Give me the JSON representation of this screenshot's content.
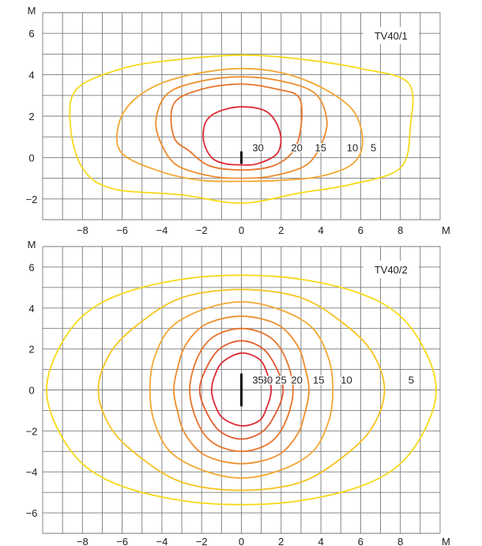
{
  "chart_data": [
    {
      "type": "contour",
      "label": "TV40/1",
      "axis_unit_x": "M",
      "axis_unit_y": "M",
      "xlim": [
        -10,
        10
      ],
      "ylim": [
        -3,
        7
      ],
      "x_ticks": [
        -8,
        -6,
        -4,
        -2,
        0,
        2,
        4,
        6,
        8
      ],
      "y_ticks": [
        6,
        4,
        2,
        0,
        -2
      ],
      "x_tick_labels": [
        "−8",
        "−6",
        "−4",
        "−2",
        "0",
        "2",
        "4",
        "6",
        "8"
      ],
      "y_tick_labels": [
        "6",
        "4",
        "2",
        "0",
        "−2"
      ],
      "grid": true,
      "luminaire": {
        "x": 0,
        "y_from": -0.3,
        "y_to": 0.3
      },
      "contours": [
        {
          "level": 5,
          "label": "5",
          "label_pos": [
            6.5,
            0.5
          ],
          "color": "#f6d91a",
          "points": [
            [
              0,
              4.95
            ],
            [
              3,
              4.75
            ],
            [
              6,
              4.3
            ],
            [
              8.4,
              3.6
            ],
            [
              8.5,
              1.5
            ],
            [
              8.0,
              -0.5
            ],
            [
              5.5,
              -1.3
            ],
            [
              3.0,
              -1.7
            ],
            [
              0,
              -2.2
            ],
            [
              -3.0,
              -1.8
            ],
            [
              -6.5,
              -1.5
            ],
            [
              -8.0,
              -0.5
            ],
            [
              -8.6,
              1.5
            ],
            [
              -8.3,
              3.3
            ],
            [
              -6.0,
              4.3
            ],
            [
              -3.5,
              4.7
            ]
          ]
        },
        {
          "level": 10,
          "label": "10",
          "label_pos": [
            5.3,
            0.5
          ],
          "color": "#f3a733",
          "points": [
            [
              0,
              4.3
            ],
            [
              2.0,
              4.1
            ],
            [
              4.0,
              3.4
            ],
            [
              5.6,
              2.3
            ],
            [
              6.1,
              0.8
            ],
            [
              5.6,
              -0.3
            ],
            [
              4.0,
              -0.9
            ],
            [
              2.0,
              -1.1
            ],
            [
              0,
              -1.15
            ],
            [
              -2.0,
              -1.1
            ],
            [
              -4.0,
              -0.7
            ],
            [
              -6.0,
              0.2
            ],
            [
              -6.2,
              1.5
            ],
            [
              -5.5,
              2.7
            ],
            [
              -4.0,
              3.6
            ],
            [
              -2.0,
              4.1
            ]
          ]
        },
        {
          "level": 15,
          "label": "15",
          "label_pos": [
            3.7,
            0.5
          ],
          "color": "#ef8d2e",
          "points": [
            [
              0,
              3.9
            ],
            [
              2.0,
              3.7
            ],
            [
              3.7,
              3.1
            ],
            [
              4.3,
              1.8
            ],
            [
              4.0,
              0.6
            ],
            [
              3.2,
              -0.4
            ],
            [
              1.5,
              -0.9
            ],
            [
              0,
              -1.0
            ],
            [
              -1.5,
              -0.9
            ],
            [
              -3.2,
              -0.4
            ],
            [
              -4.0,
              0.6
            ],
            [
              -4.3,
              1.8
            ],
            [
              -3.7,
              3.1
            ],
            [
              -2.0,
              3.7
            ]
          ]
        },
        {
          "level": 20,
          "label": "20",
          "label_pos": [
            2.5,
            0.5
          ],
          "color": "#e8742a",
          "points": [
            [
              0,
              3.55
            ],
            [
              1.8,
              3.3
            ],
            [
              2.9,
              2.9
            ],
            [
              3.0,
              1.5
            ],
            [
              2.6,
              0.3
            ],
            [
              1.6,
              -0.4
            ],
            [
              0,
              -0.6
            ],
            [
              -1.6,
              -0.4
            ],
            [
              -2.6,
              0.3
            ],
            [
              -3.4,
              1.0
            ],
            [
              -3.4,
              2.6
            ],
            [
              -2.0,
              3.3
            ]
          ]
        },
        {
          "level": 30,
          "label": "30",
          "label_pos": [
            0.55,
            0.5
          ],
          "color": "#de2a36",
          "points": [
            [
              0,
              2.45
            ],
            [
              1.3,
              2.2
            ],
            [
              1.95,
              1.2
            ],
            [
              1.8,
              0.2
            ],
            [
              0.8,
              -0.3
            ],
            [
              0,
              -0.35
            ],
            [
              -0.8,
              -0.3
            ],
            [
              -1.5,
              0.0
            ],
            [
              -1.9,
              0.8
            ],
            [
              -1.8,
              1.7
            ],
            [
              -1.2,
              2.2
            ]
          ]
        }
      ]
    },
    {
      "type": "contour",
      "label": "TV40/2",
      "axis_unit_x": "M",
      "axis_unit_y": "M",
      "xlim": [
        -10,
        10
      ],
      "ylim": [
        -7,
        7
      ],
      "x_ticks": [
        -8,
        -6,
        -4,
        -2,
        0,
        2,
        4,
        6,
        8
      ],
      "y_ticks": [
        6,
        4,
        2,
        0,
        -2,
        -4,
        -6
      ],
      "x_tick_labels": [
        "−8",
        "−6",
        "−4",
        "−2",
        "0",
        "2",
        "4",
        "6",
        "8"
      ],
      "y_tick_labels": [
        "6",
        "4",
        "2",
        "0",
        "−2",
        "−4",
        "−6"
      ],
      "grid": true,
      "luminaire": {
        "x": 0,
        "y_from": -0.8,
        "y_to": 0.8
      },
      "contours": [
        {
          "level": 5,
          "label": "5",
          "label_pos": [
            8.4,
            0.5
          ],
          "color": "#f6d91a",
          "points": [
            [
              0,
              5.6
            ],
            [
              3.0,
              5.4
            ],
            [
              6.0,
              4.7
            ],
            [
              8.0,
              3.6
            ],
            [
              9.3,
              1.8
            ],
            [
              9.8,
              0
            ],
            [
              9.3,
              -1.8
            ],
            [
              8.0,
              -3.6
            ],
            [
              6.0,
              -4.7
            ],
            [
              3.0,
              -5.4
            ],
            [
              0,
              -5.6
            ],
            [
              -3.0,
              -5.4
            ],
            [
              -6.0,
              -4.7
            ],
            [
              -8.0,
              -3.6
            ],
            [
              -9.3,
              -1.8
            ],
            [
              -9.8,
              0
            ],
            [
              -9.3,
              1.8
            ],
            [
              -8.0,
              3.6
            ],
            [
              -6.0,
              4.7
            ],
            [
              -3.0,
              5.4
            ]
          ]
        },
        {
          "level": 10,
          "label": "10",
          "label_pos": [
            5.0,
            0.5
          ],
          "color": "#f6c21c",
          "points": [
            [
              0,
              4.9
            ],
            [
              3.0,
              4.5
            ],
            [
              5.2,
              3.2
            ],
            [
              6.6,
              1.8
            ],
            [
              7.2,
              0
            ],
            [
              6.6,
              -1.8
            ],
            [
              5.2,
              -3.2
            ],
            [
              3.0,
              -4.5
            ],
            [
              0,
              -4.9
            ],
            [
              -3.0,
              -4.5
            ],
            [
              -5.2,
              -3.2
            ],
            [
              -6.6,
              -1.8
            ],
            [
              -7.2,
              0
            ],
            [
              -6.6,
              1.8
            ],
            [
              -5.2,
              3.2
            ],
            [
              -3.0,
              4.5
            ]
          ]
        },
        {
          "level": 15,
          "label": "15",
          "label_pos": [
            3.6,
            0.5
          ],
          "color": "#f3a733",
          "points": [
            [
              0,
              4.3
            ],
            [
              2.0,
              3.9
            ],
            [
              3.6,
              3.0
            ],
            [
              4.4,
              1.5
            ],
            [
              4.6,
              0
            ],
            [
              4.4,
              -1.5
            ],
            [
              3.6,
              -3.0
            ],
            [
              2.0,
              -3.9
            ],
            [
              0,
              -4.3
            ],
            [
              -2.0,
              -3.9
            ],
            [
              -3.6,
              -3.0
            ],
            [
              -4.4,
              -1.5
            ],
            [
              -4.6,
              0
            ],
            [
              -4.4,
              1.5
            ],
            [
              -3.6,
              3.0
            ],
            [
              -2.0,
              3.9
            ]
          ]
        },
        {
          "level": 20,
          "label": "20",
          "label_pos": [
            2.5,
            0.5
          ],
          "color": "#ef8d2e",
          "points": [
            [
              0,
              3.6
            ],
            [
              1.8,
              3.2
            ],
            [
              2.8,
              2.2
            ],
            [
              3.2,
              1.1
            ],
            [
              3.4,
              0
            ],
            [
              3.2,
              -1.1
            ],
            [
              2.8,
              -2.2
            ],
            [
              1.8,
              -3.2
            ],
            [
              0,
              -3.6
            ],
            [
              -1.8,
              -3.2
            ],
            [
              -2.8,
              -2.2
            ],
            [
              -3.2,
              -1.1
            ],
            [
              -3.4,
              0
            ],
            [
              -3.2,
              1.1
            ],
            [
              -2.8,
              2.2
            ],
            [
              -1.8,
              3.2
            ]
          ]
        },
        {
          "level": 25,
          "label": "25",
          "label_pos": [
            1.7,
            0.5
          ],
          "color": "#e8742a",
          "points": [
            [
              0,
              3.0
            ],
            [
              1.4,
              2.6
            ],
            [
              2.2,
              1.6
            ],
            [
              2.6,
              0
            ],
            [
              2.2,
              -1.6
            ],
            [
              1.4,
              -2.6
            ],
            [
              0,
              -3.0
            ],
            [
              -1.4,
              -2.6
            ],
            [
              -2.2,
              -1.6
            ],
            [
              -2.6,
              0
            ],
            [
              -2.2,
              1.6
            ],
            [
              -1.4,
              2.6
            ]
          ]
        },
        {
          "level": 30,
          "label": "30",
          "label_pos": [
            1.0,
            0.5
          ],
          "color": "#e25a2c",
          "points": [
            [
              0,
              2.4
            ],
            [
              1.1,
              2.0
            ],
            [
              1.8,
              1.0
            ],
            [
              2.1,
              0
            ],
            [
              1.8,
              -1.0
            ],
            [
              1.1,
              -2.0
            ],
            [
              0,
              -2.4
            ],
            [
              -1.1,
              -2.0
            ],
            [
              -1.8,
              -1.0
            ],
            [
              -2.1,
              0
            ],
            [
              -1.8,
              1.0
            ],
            [
              -1.1,
              2.0
            ]
          ]
        },
        {
          "level": 35,
          "label": "35",
          "label_pos": [
            0.55,
            0.5
          ],
          "color": "#de2a36",
          "points": [
            [
              0,
              1.8
            ],
            [
              0.9,
              1.5
            ],
            [
              1.3,
              0.8
            ],
            [
              1.5,
              0
            ],
            [
              1.3,
              -0.8
            ],
            [
              0.9,
              -1.5
            ],
            [
              0,
              -1.75
            ],
            [
              -0.9,
              -1.4
            ],
            [
              -1.3,
              -0.8
            ],
            [
              -1.5,
              0
            ],
            [
              -1.3,
              0.8
            ],
            [
              -0.9,
              1.4
            ]
          ]
        }
      ]
    }
  ]
}
